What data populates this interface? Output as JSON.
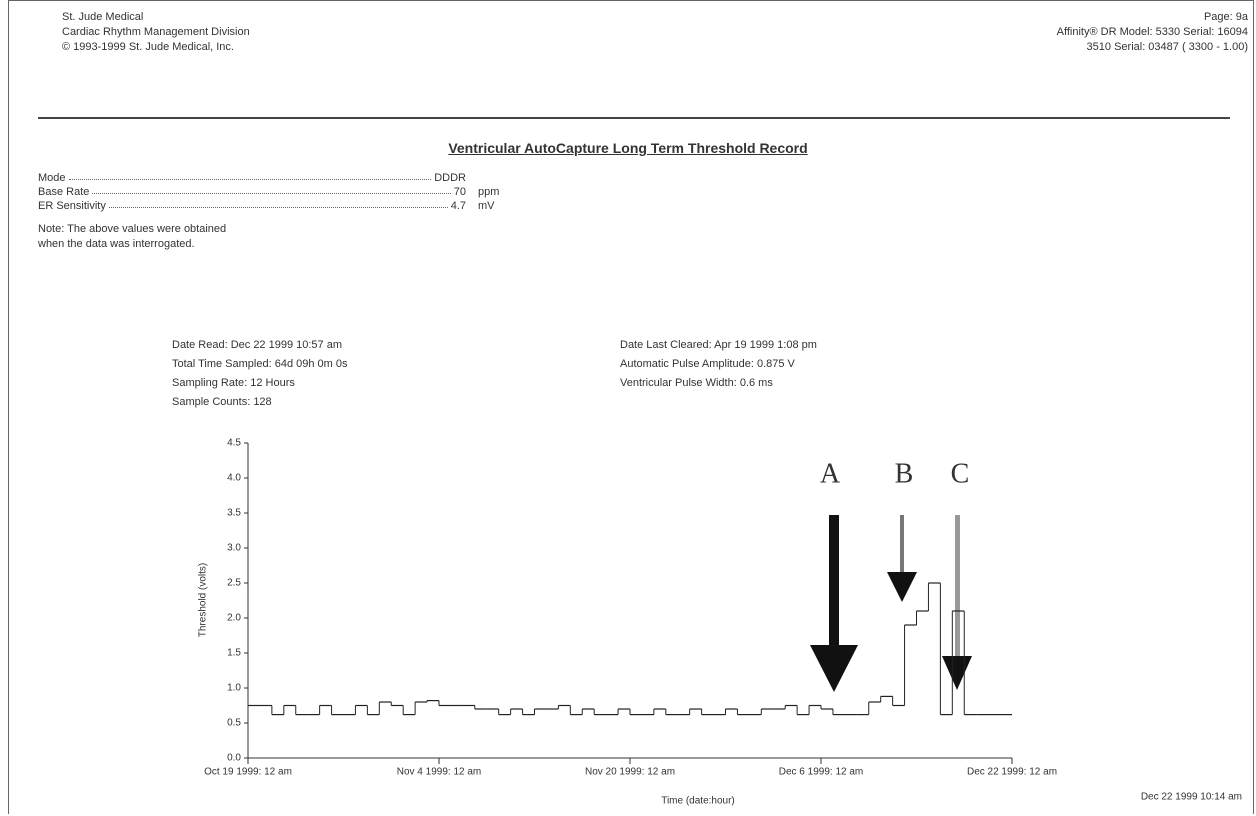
{
  "header": {
    "left": [
      "St. Jude Medical",
      "Cardiac Rhythm Management Division",
      "© 1993-1999 St. Jude Medical, Inc."
    ],
    "right": [
      "Page: 9a",
      "Affinity® DR Model: 5330 Serial: 16094",
      "3510 Serial: 03487 ( 3300 - 1.00)"
    ]
  },
  "title": "Ventricular AutoCapture Long Term Threshold Record",
  "settings": [
    {
      "label": "Mode",
      "value": "DDDR",
      "unit": ""
    },
    {
      "label": "Base Rate",
      "value": "70",
      "unit": "ppm"
    },
    {
      "label": "ER Sensitivity",
      "value": "4.7",
      "unit": "mV"
    }
  ],
  "note": [
    "Note: The above values were obtained",
    "when the data was interrogated."
  ],
  "info": {
    "left": [
      "Date Read:  Dec 22 1999 10:57 am",
      "Total Time Sampled:  64d 09h 0m 0s",
      "Sampling Rate:  12 Hours",
      "Sample Counts:  128"
    ],
    "right": [
      "Date Last Cleared:  Apr 19 1999 1:08 pm",
      "Automatic Pulse Amplitude:  0.875 V",
      "Ventricular Pulse Width:  0.6 ms"
    ]
  },
  "chart_data": {
    "type": "step",
    "y_label": "Threshold (volts)",
    "x_label": "Time (date:hour)",
    "color": "#222222",
    "values": [
      0.75,
      0.75,
      0.62,
      0.75,
      0.62,
      0.62,
      0.75,
      0.62,
      0.62,
      0.75,
      0.62,
      0.8,
      0.75,
      0.62,
      0.8,
      0.82,
      0.75,
      0.75,
      0.75,
      0.7,
      0.7,
      0.62,
      0.7,
      0.62,
      0.7,
      0.7,
      0.75,
      0.62,
      0.7,
      0.62,
      0.62,
      0.7,
      0.62,
      0.62,
      0.7,
      0.62,
      0.62,
      0.7,
      0.62,
      0.62,
      0.7,
      0.62,
      0.62,
      0.7,
      0.7,
      0.75,
      0.62,
      0.75,
      0.7,
      0.62,
      0.62,
      0.62,
      0.8,
      0.88,
      0.75,
      1.9,
      2.1,
      2.5,
      0.62,
      2.1,
      0.62,
      0.62,
      0.62,
      0.62
    ],
    "ylim": [
      0,
      4.5
    ],
    "yticks": [
      {
        "value": 0,
        "label": "0.0"
      },
      {
        "value": 0.5,
        "label": "0.5"
      },
      {
        "value": 1,
        "label": "1.0"
      },
      {
        "value": 1.5,
        "label": "1.5"
      },
      {
        "value": 2,
        "label": "2.0"
      },
      {
        "value": 2.5,
        "label": "2.5"
      },
      {
        "value": 3,
        "label": "3.0"
      },
      {
        "value": 3.5,
        "label": "3.5"
      },
      {
        "value": 4,
        "label": "4.0"
      },
      {
        "value": 4.5,
        "label": "4.5"
      }
    ],
    "xlim": [
      0,
      64
    ],
    "xticks": [
      {
        "value": 0,
        "label": "Oct 19 1999: 12 am"
      },
      {
        "value": 16,
        "label": "Nov 4 1999: 12 am"
      },
      {
        "value": 32,
        "label": "Nov 20 1999: 12 am"
      },
      {
        "value": 48,
        "label": "Dec 6 1999: 12 am"
      },
      {
        "value": 64,
        "label": "Dec 22 1999: 12 am"
      }
    ],
    "annotations": [
      "A",
      "B",
      "C"
    ],
    "footer": "Dec 22 1999 10:14 am"
  }
}
